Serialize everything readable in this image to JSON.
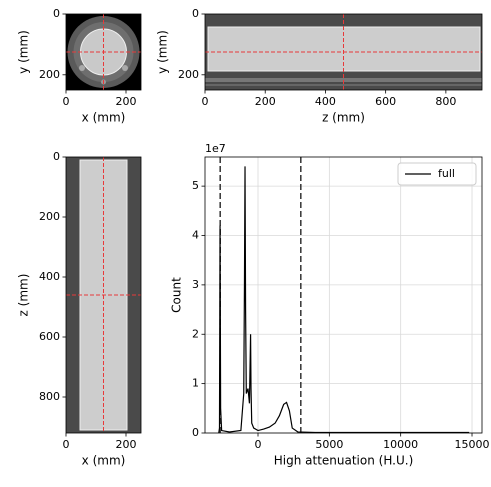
{
  "chart_data": [
    {
      "type": "image",
      "xlabel": "x (mm)",
      "ylabel": "y (mm)",
      "xlim": [
        0,
        250
      ],
      "ylim": [
        250,
        0
      ],
      "xticks": [
        0,
        200
      ],
      "yticks": [
        0,
        200
      ],
      "crosshair": {
        "x": 125,
        "y": 125
      },
      "crosshair_color": "#e8393a"
    },
    {
      "type": "image",
      "xlabel": "z (mm)",
      "ylabel": "y (mm)",
      "xlim": [
        0,
        920
      ],
      "ylim": [
        250,
        0
      ],
      "xticks": [
        0,
        200,
        400,
        600,
        800
      ],
      "yticks": [
        0,
        200
      ],
      "crosshair": {
        "x": 460,
        "y": 125
      },
      "crosshair_color": "#e8393a"
    },
    {
      "type": "image",
      "xlabel": "x (mm)",
      "ylabel": "z (mm)",
      "xlim": [
        0,
        250
      ],
      "ylim": [
        920,
        0
      ],
      "xticks": [
        0,
        200
      ],
      "yticks": [
        0,
        200,
        400,
        600,
        800
      ],
      "crosshair": {
        "x": 125,
        "y": 460
      },
      "crosshair_color": "#e8393a"
    },
    {
      "type": "line",
      "xlabel": "High attenuation (H.U.)",
      "ylabel": "Count",
      "y_offset_label": "1e7",
      "xlim": [
        -3715,
        15700
      ],
      "ylim": [
        0,
        5.59
      ],
      "xticks": [
        0,
        5000,
        10000,
        15000
      ],
      "yticks": [
        0,
        1,
        2,
        3,
        4,
        5
      ],
      "grid": true,
      "legend": "upper right",
      "vlines": [
        -2650,
        3000
      ],
      "x": [
        -2750,
        -2700,
        -2660,
        -2620,
        -2550,
        -2000,
        -1200,
        -1000,
        -950,
        -910,
        -870,
        -820,
        -700,
        -600,
        -520,
        -490,
        -440,
        -300,
        0,
        400,
        800,
        1200,
        1500,
        1800,
        2000,
        2200,
        2400,
        2800,
        4000,
        8000,
        14800
      ],
      "series": [
        {
          "name": "full",
          "color": "#000000",
          "values": [
            0,
            0.1,
            4.2,
            0.5,
            0.05,
            0.02,
            0.05,
            0.8,
            3,
            5.4,
            2.5,
            0.8,
            0.9,
            0.6,
            2,
            0.91,
            0.2,
            0.1,
            0.05,
            0.08,
            0.12,
            0.2,
            0.35,
            0.58,
            0.62,
            0.45,
            0.1,
            0.02,
            0.01,
            0.01,
            0.01
          ]
        }
      ]
    }
  ]
}
